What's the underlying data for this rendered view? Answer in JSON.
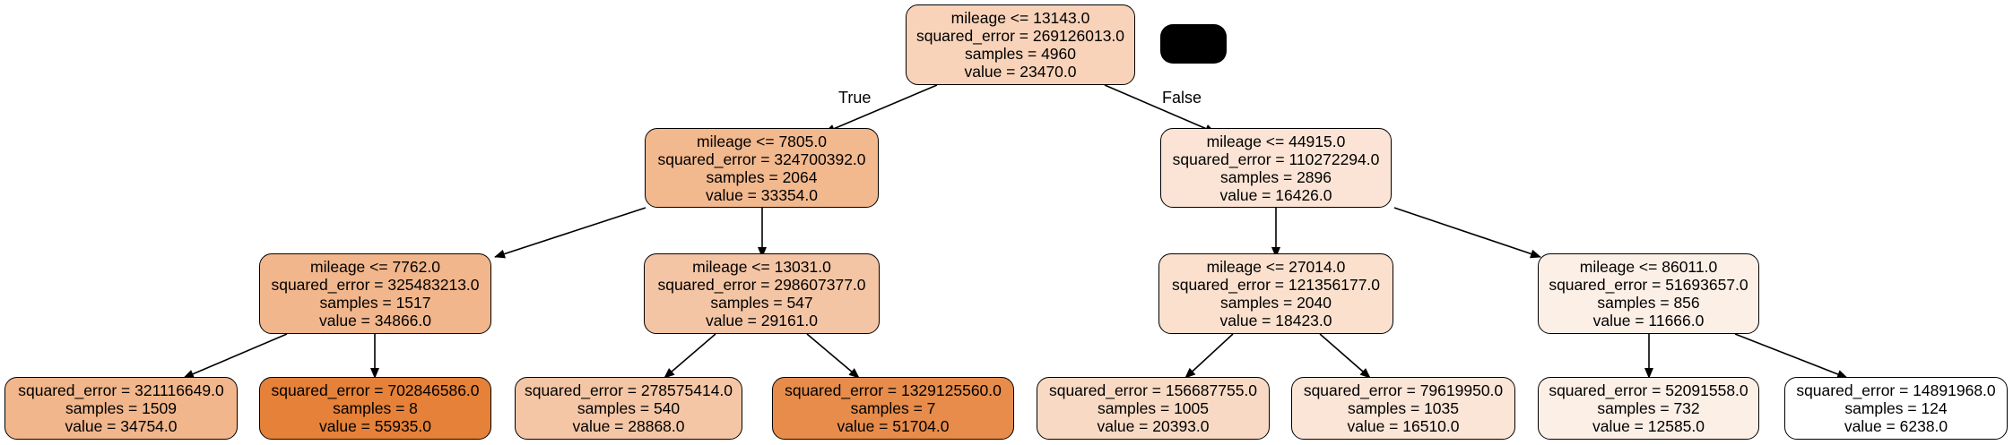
{
  "edge_labels": {
    "true_label": "True",
    "false_label": "False"
  },
  "nodes": [
    {
      "id": "n0",
      "lines": [
        "mileage <= 13143.0",
        "squared_error = 269126013.0",
        "samples = 4960",
        "value = 23470.0"
      ],
      "fill": "#f8d3b9"
    },
    {
      "id": "n1",
      "lines": [
        "mileage <= 7805.0",
        "squared_error = 324700392.0",
        "samples = 2064",
        "value = 33354.0"
      ],
      "fill": "#f2b88e"
    },
    {
      "id": "n2",
      "lines": [
        "mileage <= 44915.0",
        "squared_error = 110272294.0",
        "samples = 2896",
        "value = 16426.0"
      ],
      "fill": "#fbe4d5"
    },
    {
      "id": "n3",
      "lines": [
        "mileage <= 7762.0",
        "squared_error = 325483213.0",
        "samples = 1517",
        "value = 34866.0"
      ],
      "fill": "#f1b68b"
    },
    {
      "id": "n4",
      "lines": [
        "mileage <= 13031.0",
        "squared_error = 298607377.0",
        "samples = 547",
        "value = 29161.0"
      ],
      "fill": "#f4c5a4"
    },
    {
      "id": "n5",
      "lines": [
        "mileage <= 27014.0",
        "squared_error = 121356177.0",
        "samples = 2040",
        "value = 18423.0"
      ],
      "fill": "#fae0cd"
    },
    {
      "id": "n6",
      "lines": [
        "mileage <= 86011.0",
        "squared_error = 51693657.0",
        "samples = 856",
        "value = 11666.0"
      ],
      "fill": "#fcefe6"
    },
    {
      "id": "n7",
      "lines": [
        "squared_error = 321116649.0",
        "samples = 1509",
        "value = 34754.0"
      ],
      "fill": "#f1b68b"
    },
    {
      "id": "n8",
      "lines": [
        "squared_error = 702846586.0",
        "samples = 8",
        "value = 55935.0"
      ],
      "fill": "#e58139"
    },
    {
      "id": "n9",
      "lines": [
        "squared_error = 278575414.0",
        "samples = 540",
        "value = 28868.0"
      ],
      "fill": "#f4c6a5"
    },
    {
      "id": "n10",
      "lines": [
        "squared_error = 1329125560.0",
        "samples = 7",
        "value = 51704.0"
      ],
      "fill": "#e78c4b"
    },
    {
      "id": "n11",
      "lines": [
        "squared_error = 156687755.0",
        "samples = 1005",
        "value = 20393.0"
      ],
      "fill": "#f8dac4"
    },
    {
      "id": "n12",
      "lines": [
        "squared_error = 79619950.0",
        "samples = 1035",
        "value = 16510.0"
      ],
      "fill": "#fbe5d6"
    },
    {
      "id": "n13",
      "lines": [
        "squared_error = 52091558.0",
        "samples = 732",
        "value = 12585.0"
      ],
      "fill": "#fcefe6"
    },
    {
      "id": "n14",
      "lines": [
        "squared_error = 14891968.0",
        "samples = 124",
        "value = 6238.0"
      ],
      "fill": "#ffffff"
    }
  ]
}
